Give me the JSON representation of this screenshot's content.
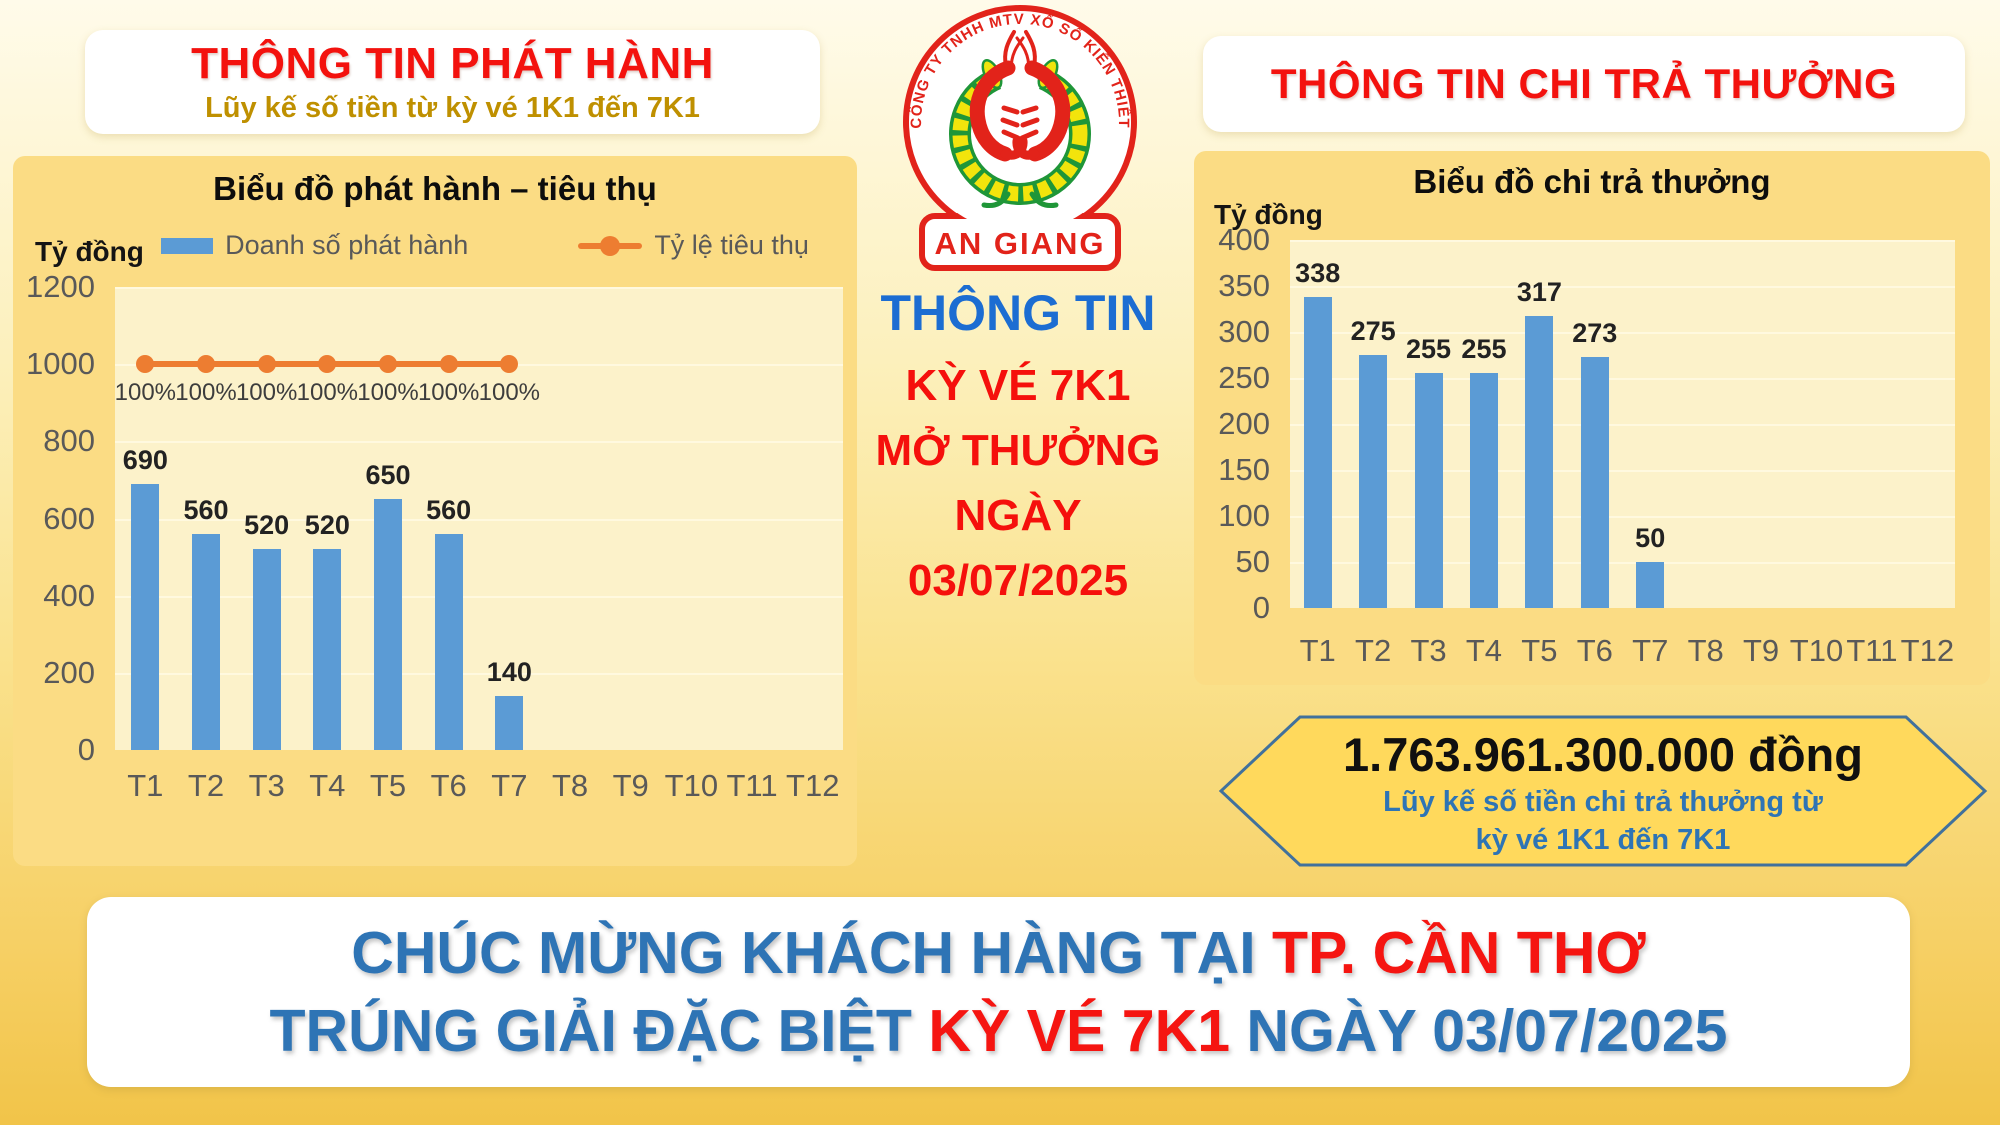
{
  "left_section": {
    "title": "THÔNG TIN PHÁT HÀNH",
    "subtitle": "Lũy kế số tiền từ kỳ vé 1K1 đến 7K1",
    "chart_title": "Biểu đồ phát hành – tiêu thụ",
    "axis_unit": "Tỷ đồng",
    "legend": [
      {
        "label": "Doanh số phát hành",
        "type": "bar"
      },
      {
        "label": "Tỷ lệ tiêu thụ",
        "type": "line"
      }
    ]
  },
  "center_section": {
    "logo": {
      "arc_text": "CÔNG TY TNHH MTV XỔ SỐ KIẾN THIẾT",
      "name": "AN GIANG"
    },
    "lines": [
      {
        "text": "THÔNG TIN",
        "color": "blue"
      },
      {
        "text": "KỲ VÉ 7K1",
        "color": "red"
      },
      {
        "text": "MỞ THƯỞNG",
        "color": "red"
      },
      {
        "text": "NGÀY",
        "color": "red"
      },
      {
        "text": "03/07/2025",
        "color": "red"
      }
    ]
  },
  "right_section": {
    "title": "THÔNG TIN CHI TRẢ THƯỞNG",
    "chart_title": "Biểu đồ chi trả thưởng",
    "axis_unit": "Tỷ đồng"
  },
  "summary_banner": {
    "amount": "1.763.961.300.000 đồng",
    "caption_line1": "Lũy kế số tiền chi trả thưởng từ",
    "caption_line2": "kỳ vé 1K1 đến 7K1"
  },
  "footer_banner": {
    "line1": [
      {
        "text": "CHÚC MỪNG KHÁCH HÀNG TẠI ",
        "color": "blue"
      },
      {
        "text": "TP. CẦN THƠ",
        "color": "red"
      }
    ],
    "line2": [
      {
        "text": "TRÚNG GIẢI ĐẶC BIỆT ",
        "color": "blue"
      },
      {
        "text": "KỲ VÉ 7K1 ",
        "color": "red"
      },
      {
        "text": "NGÀY 03/07/2025",
        "color": "blue"
      }
    ]
  },
  "colors": {
    "title_red": "#F3120E",
    "subtitle_gold": "#BF9000",
    "panel_yellow": "#FBDC84",
    "plot_cream": "#FCF2CA",
    "bar_blue": "#5B9BD5",
    "line_orange": "#ED7D31",
    "axis_gray": "#595959",
    "center_blue": "#1C6DD2",
    "footer_blue": "#2E74B5",
    "footer_red": "#F51511",
    "banner_gold": "#FFD95C",
    "banner_border_blue": "#41719C",
    "logo_red": "#E2231A",
    "logo_green": "#1F9638",
    "logo_yellow": "#F2E40C"
  },
  "chart_data": [
    {
      "id": "issuance",
      "type": "bar",
      "title": "Biểu đồ phát hành – tiêu thụ",
      "ylabel": "Tỷ đồng",
      "categories": [
        "T1",
        "T2",
        "T3",
        "T4",
        "T5",
        "T6",
        "T7",
        "T8",
        "T9",
        "T10",
        "T11",
        "T12"
      ],
      "series": [
        {
          "name": "Doanh số phát hành",
          "type": "bar",
          "values": [
            690,
            560,
            520,
            520,
            650,
            560,
            140,
            null,
            null,
            null,
            null,
            null
          ]
        },
        {
          "name": "Tỷ lệ tiêu thụ",
          "type": "line",
          "values_percent": [
            "100%",
            "100%",
            "100%",
            "100%",
            "100%",
            "100%",
            "100%"
          ],
          "plotted_at_primary_value": 1000
        }
      ],
      "ylim": [
        0,
        1200
      ],
      "ytick_step": 200,
      "grid": true,
      "legend_position": "top"
    },
    {
      "id": "payout",
      "type": "bar",
      "title": "Biểu đồ chi trả thưởng",
      "ylabel": "Tỷ đồng",
      "categories": [
        "T1",
        "T2",
        "T3",
        "T4",
        "T5",
        "T6",
        "T7",
        "T8",
        "T9",
        "T10",
        "T11",
        "T12"
      ],
      "values": [
        338,
        275,
        255,
        255,
        317,
        273,
        50,
        null,
        null,
        null,
        null,
        null
      ],
      "ylim": [
        0,
        400
      ],
      "ytick_step": 50,
      "grid": true,
      "legend_position": "none"
    }
  ]
}
